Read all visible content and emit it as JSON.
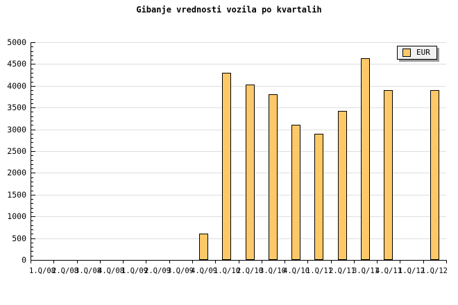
{
  "chart_data": {
    "type": "bar",
    "title": "Gibanje vrednosti vozila po kvartalih",
    "categories": [
      "1.Q/08",
      "2.Q/08",
      "3.Q/08",
      "4.Q/08",
      "1.Q/09",
      "2.Q/09",
      "3.Q/09",
      "4.Q/09",
      "1.Q/10",
      "2.Q/10",
      "3.Q/10",
      "4.Q/10",
      "1.Q/11",
      "2.Q/11",
      "3.Q/11",
      "4.Q/11",
      "1.Q/12",
      "1.Q/12"
    ],
    "series": [
      {
        "name": "EUR",
        "values": [
          null,
          null,
          null,
          null,
          null,
          null,
          null,
          600,
          4300,
          4030,
          3810,
          3100,
          2900,
          3420,
          4630,
          3900,
          null,
          3900
        ]
      }
    ],
    "xlabel": "",
    "ylabel": "",
    "ylim": [
      0,
      5000
    ],
    "y_tick_step": 500,
    "y_minor_tick_step": 100,
    "y_tick_labels": [
      "0",
      "500",
      "1000",
      "1500",
      "2000",
      "2500",
      "3000",
      "3500",
      "4000",
      "4500",
      "5000"
    ],
    "grid": "horizontal-major-on",
    "legend": {
      "position": "top-right",
      "entries": [
        {
          "label": "EUR",
          "swatch_color": "#FDC968"
        }
      ]
    },
    "colors": {
      "bar_fill": "#FDC968",
      "bar_border": "#000000",
      "grid_line": "#DEDEDE",
      "axis": "#000000",
      "background": "#FFFFFF",
      "legend_bg": "#F1F1F1",
      "legend_shadow": "#999999",
      "text": "#000000"
    }
  }
}
